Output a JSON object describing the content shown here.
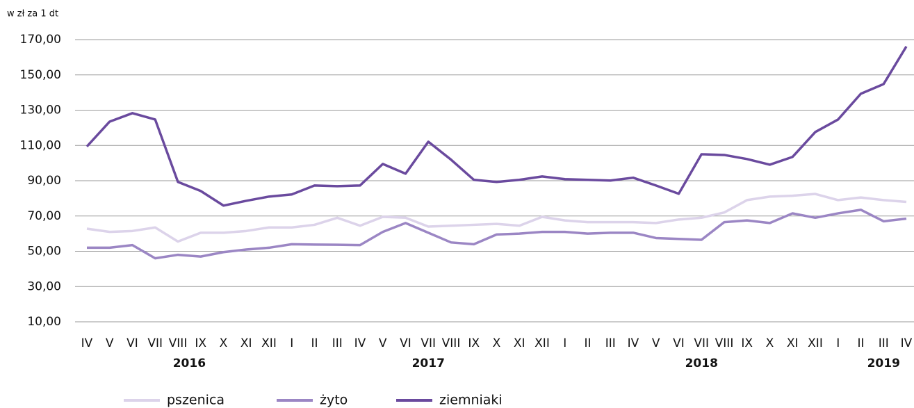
{
  "chart_data": {
    "type": "line",
    "y_unit_label": "w zł za 1 dt",
    "categories": [
      "IV",
      "V",
      "VI",
      "VII",
      "VIII",
      "IX",
      "X",
      "XI",
      "XII",
      "I",
      "II",
      "III",
      "IV",
      "V",
      "VI",
      "VII",
      "VIII",
      "IX",
      "X",
      "XI",
      "XII",
      "I",
      "II",
      "III",
      "IV",
      "V",
      "VI",
      "VII",
      "VIII",
      "IX",
      "X",
      "XI",
      "XII",
      "I",
      "II",
      "III",
      "IV"
    ],
    "year_labels": [
      "2016",
      "2017",
      "2018",
      "2019"
    ],
    "year_spans": [
      9,
      12,
      12,
      4
    ],
    "series": [
      {
        "name": "pszenica",
        "color": "#dcd3ea",
        "values": [
          62.8,
          61,
          61.5,
          63.5,
          55.5,
          60.5,
          60.5,
          61.5,
          63.5,
          63.5,
          65,
          69,
          64.5,
          69.5,
          69,
          64,
          64.5,
          65,
          65.5,
          64.5,
          69.5,
          67.5,
          66.5,
          66.5,
          66.5,
          66,
          68,
          69,
          72,
          79,
          81,
          81.5,
          82.5,
          79,
          80.5,
          79,
          78
        ]
      },
      {
        "name": "żyto",
        "color": "#9b86c4",
        "values": [
          52,
          52,
          53.5,
          46,
          48,
          47,
          49.5,
          51,
          52,
          54,
          53.8,
          53.7,
          53.5,
          61,
          66,
          60.5,
          55,
          54,
          59.5,
          60,
          61,
          61,
          60,
          60.5,
          60.5,
          57.5,
          57,
          56.5,
          66.5,
          67.5,
          66,
          71.5,
          69,
          71.5,
          73.5,
          67,
          68.5
        ]
      },
      {
        "name": "ziemniaki",
        "color": "#6a4a9e",
        "values": [
          109.4,
          123.5,
          128.3,
          124.7,
          89.3,
          84.2,
          75.9,
          78.6,
          81,
          82.2,
          87.3,
          86.9,
          87.3,
          99.5,
          94,
          112.1,
          101.9,
          90.5,
          89.3,
          90.5,
          92.4,
          90.9,
          90.5,
          90.1,
          91.7,
          87.3,
          82.6,
          105,
          104.6,
          102.3,
          99.1,
          103.5,
          117.6,
          124.7,
          139.3,
          144.8,
          166.1
        ]
      }
    ],
    "ylim": [
      10,
      170
    ],
    "yticks": [
      {
        "value": 10,
        "label": "10,00"
      },
      {
        "value": 30,
        "label": "30,00"
      },
      {
        "value": 50,
        "label": "50,00"
      },
      {
        "value": 70,
        "label": "70,00"
      },
      {
        "value": 90,
        "label": "90,00"
      },
      {
        "value": 110,
        "label": "110,00"
      },
      {
        "value": 130,
        "label": "130,00"
      },
      {
        "value": 150,
        "label": "150,00"
      },
      {
        "value": 170,
        "label": "170,00"
      }
    ],
    "grid": true
  }
}
